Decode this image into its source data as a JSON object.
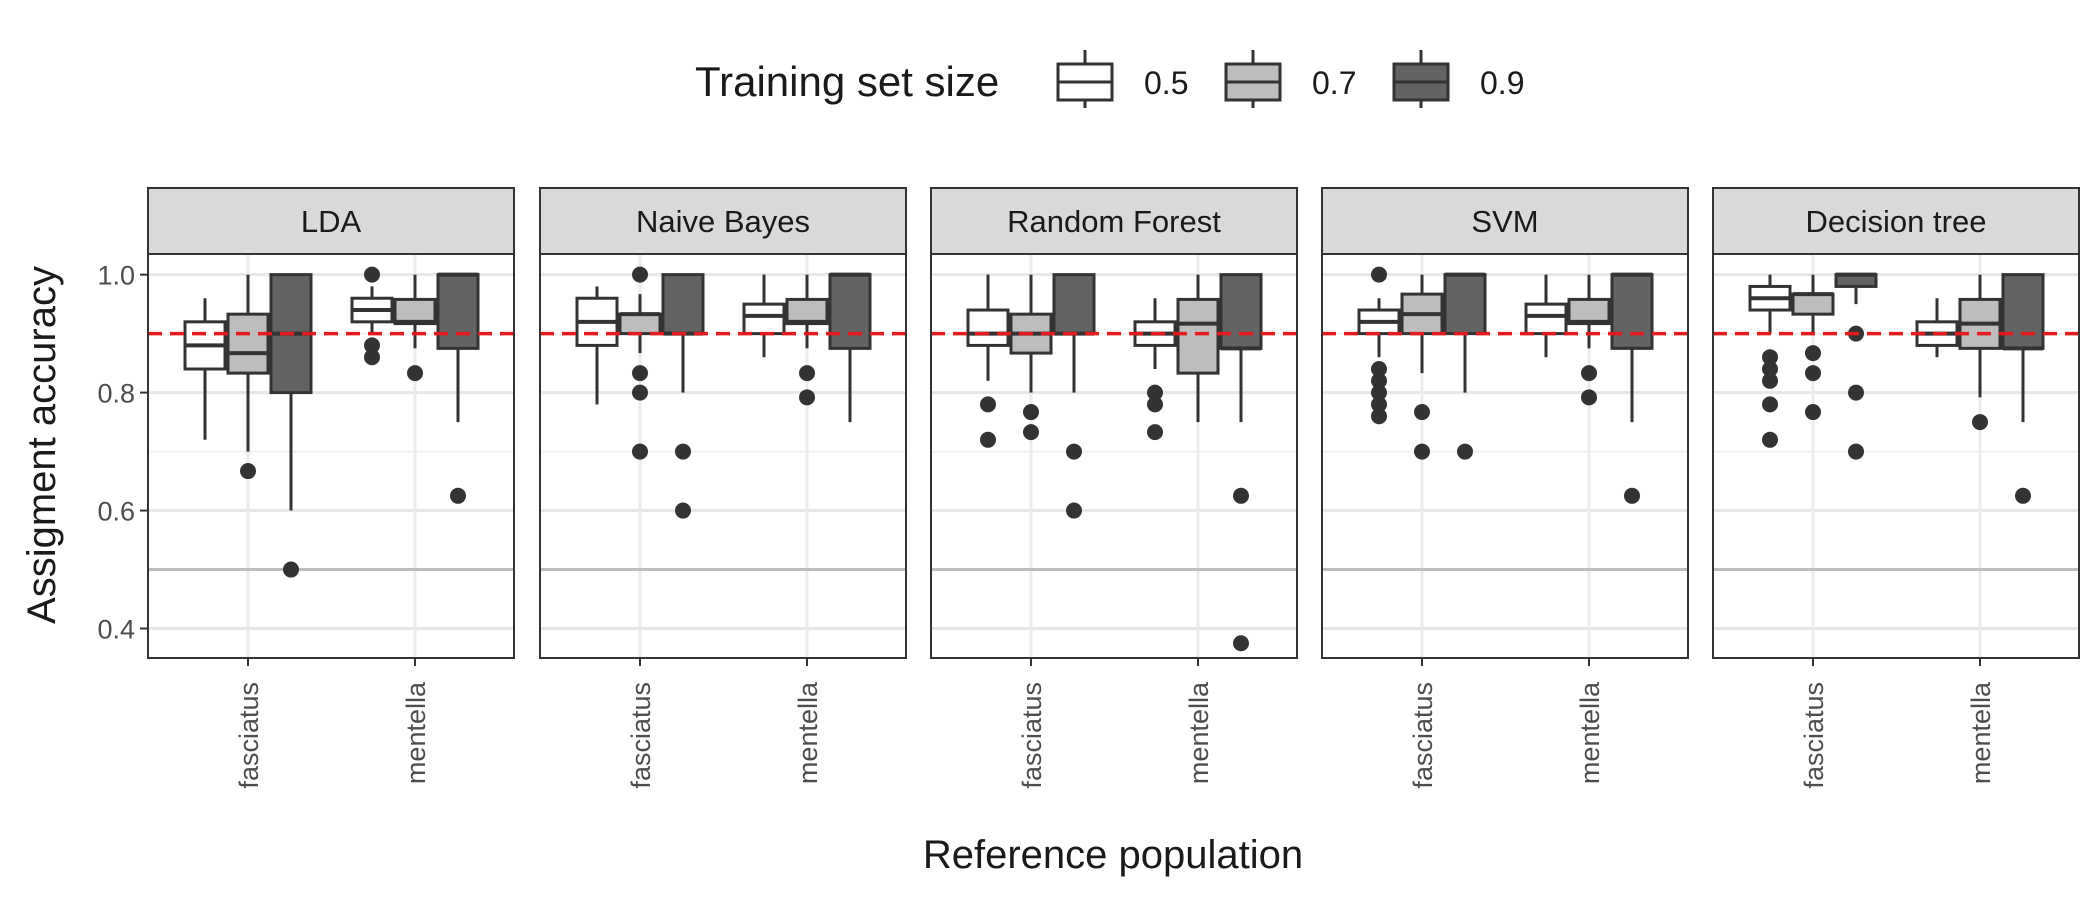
{
  "chart_data": {
    "type": "boxplot",
    "title": "",
    "xlabel": "Reference population",
    "ylabel": "Assigment accuracy",
    "ylim": [
      0.35,
      1.035
    ],
    "yticks": [
      0.4,
      0.6,
      0.8,
      1.0
    ],
    "ytick_labels": [
      "0.4",
      "0.6",
      "0.8",
      "1.0"
    ],
    "grid": true,
    "legend": {
      "title": "Training set size",
      "position": "top",
      "entries": [
        {
          "label": "0.5",
          "color": "#ffffff"
        },
        {
          "label": "0.7",
          "color": "#bdbdbd"
        },
        {
          "label": "0.9",
          "color": "#636363"
        }
      ]
    },
    "reference_lines": [
      {
        "y": 0.9,
        "color": "#e41a1c",
        "style": "dashed"
      },
      {
        "y": 0.5,
        "color": "#bdbdbd",
        "style": "solid"
      }
    ],
    "categories": [
      "fasciatus",
      "mentella"
    ],
    "panels": [
      {
        "label": "LDA",
        "groups": [
          {
            "category": "fasciatus",
            "boxes": [
              {
                "q1": 0.84,
                "median": 0.88,
                "q3": 0.92,
                "low": 0.72,
                "high": 0.96,
                "outliers": []
              },
              {
                "q1": 0.833,
                "median": 0.867,
                "q3": 0.933,
                "low": 0.7,
                "high": 1.0,
                "outliers": [
                  0.667
                ]
              },
              {
                "q1": 0.8,
                "median": 0.9,
                "q3": 1.0,
                "low": 0.6,
                "high": 1.0,
                "outliers": [
                  0.5
                ]
              }
            ]
          },
          {
            "category": "mentella",
            "boxes": [
              {
                "q1": 0.92,
                "median": 0.94,
                "q3": 0.96,
                "low": 0.9,
                "high": 0.98,
                "outliers": [
                  1.0,
                  0.88,
                  0.86
                ]
              },
              {
                "q1": 0.917,
                "median": 0.92,
                "q3": 0.958,
                "low": 0.875,
                "high": 1.0,
                "outliers": [
                  0.833
                ]
              },
              {
                "q1": 0.875,
                "median": 1.0,
                "q3": 1.0,
                "low": 0.75,
                "high": 1.0,
                "outliers": [
                  0.625
                ]
              }
            ]
          }
        ]
      },
      {
        "label": "Naive Bayes",
        "groups": [
          {
            "category": "fasciatus",
            "boxes": [
              {
                "q1": 0.88,
                "median": 0.92,
                "q3": 0.96,
                "low": 0.78,
                "high": 0.98,
                "outliers": []
              },
              {
                "q1": 0.9,
                "median": 0.933,
                "q3": 0.933,
                "low": 0.867,
                "high": 0.967,
                "outliers": [
                  1.0,
                  0.833,
                  0.8,
                  0.7
                ]
              },
              {
                "q1": 0.9,
                "median": 0.9,
                "q3": 1.0,
                "low": 0.8,
                "high": 1.0,
                "outliers": [
                  0.7,
                  0.6
                ]
              }
            ]
          },
          {
            "category": "mentella",
            "boxes": [
              {
                "q1": 0.9,
                "median": 0.93,
                "q3": 0.95,
                "low": 0.86,
                "high": 1.0,
                "outliers": []
              },
              {
                "q1": 0.917,
                "median": 0.92,
                "q3": 0.958,
                "low": 0.875,
                "high": 1.0,
                "outliers": [
                  0.833,
                  0.792
                ]
              },
              {
                "q1": 0.875,
                "median": 1.0,
                "q3": 1.0,
                "low": 0.75,
                "high": 1.0,
                "outliers": []
              }
            ]
          }
        ]
      },
      {
        "label": "Random Forest",
        "groups": [
          {
            "category": "fasciatus",
            "boxes": [
              {
                "q1": 0.88,
                "median": 0.9,
                "q3": 0.94,
                "low": 0.82,
                "high": 1.0,
                "outliers": [
                  0.78,
                  0.72
                ]
              },
              {
                "q1": 0.867,
                "median": 0.9,
                "q3": 0.933,
                "low": 0.8,
                "high": 1.0,
                "outliers": [
                  0.767,
                  0.733
                ]
              },
              {
                "q1": 0.9,
                "median": 0.9,
                "q3": 1.0,
                "low": 0.8,
                "high": 1.0,
                "outliers": [
                  0.7,
                  0.6
                ]
              }
            ]
          },
          {
            "category": "mentella",
            "boxes": [
              {
                "q1": 0.88,
                "median": 0.9,
                "q3": 0.92,
                "low": 0.84,
                "high": 0.96,
                "outliers": [
                  0.8,
                  0.78,
                  0.733
                ]
              },
              {
                "q1": 0.833,
                "median": 0.917,
                "q3": 0.958,
                "low": 0.75,
                "high": 1.0,
                "outliers": []
              },
              {
                "q1": 0.875,
                "median": 0.875,
                "q3": 1.0,
                "low": 0.75,
                "high": 1.0,
                "outliers": [
                  0.625,
                  0.375
                ]
              }
            ]
          }
        ]
      },
      {
        "label": "SVM",
        "groups": [
          {
            "category": "fasciatus",
            "boxes": [
              {
                "q1": 0.9,
                "median": 0.92,
                "q3": 0.94,
                "low": 0.86,
                "high": 0.96,
                "outliers": [
                  1.0,
                  0.84,
                  0.82,
                  0.8,
                  0.78,
                  0.76
                ]
              },
              {
                "q1": 0.9,
                "median": 0.933,
                "q3": 0.967,
                "low": 0.833,
                "high": 1.0,
                "outliers": [
                  0.767,
                  0.7
                ]
              },
              {
                "q1": 0.9,
                "median": 1.0,
                "q3": 1.0,
                "low": 0.8,
                "high": 1.0,
                "outliers": [
                  0.7
                ]
              }
            ]
          },
          {
            "category": "mentella",
            "boxes": [
              {
                "q1": 0.9,
                "median": 0.93,
                "q3": 0.95,
                "low": 0.86,
                "high": 1.0,
                "outliers": []
              },
              {
                "q1": 0.917,
                "median": 0.92,
                "q3": 0.958,
                "low": 0.875,
                "high": 1.0,
                "outliers": [
                  0.833,
                  0.792
                ]
              },
              {
                "q1": 0.875,
                "median": 1.0,
                "q3": 1.0,
                "low": 0.75,
                "high": 1.0,
                "outliers": [
                  0.625
                ]
              }
            ]
          }
        ]
      },
      {
        "label": "Decision tree",
        "groups": [
          {
            "category": "fasciatus",
            "boxes": [
              {
                "q1": 0.94,
                "median": 0.96,
                "q3": 0.98,
                "low": 0.9,
                "high": 1.0,
                "outliers": [
                  0.86,
                  0.84,
                  0.82,
                  0.78,
                  0.72
                ]
              },
              {
                "q1": 0.933,
                "median": 0.967,
                "q3": 0.967,
                "low": 0.9,
                "high": 1.0,
                "outliers": [
                  0.867,
                  0.833,
                  0.767
                ]
              },
              {
                "q1": 0.98,
                "median": 1.0,
                "q3": 1.0,
                "low": 0.95,
                "high": 1.0,
                "outliers": [
                  0.9,
                  0.8,
                  0.7
                ]
              }
            ]
          },
          {
            "category": "mentella",
            "boxes": [
              {
                "q1": 0.88,
                "median": 0.9,
                "q3": 0.92,
                "low": 0.86,
                "high": 0.96,
                "outliers": []
              },
              {
                "q1": 0.875,
                "median": 0.917,
                "q3": 0.958,
                "low": 0.792,
                "high": 1.0,
                "outliers": [
                  0.75
                ]
              },
              {
                "q1": 0.875,
                "median": 0.875,
                "q3": 1.0,
                "low": 0.75,
                "high": 1.0,
                "outliers": [
                  0.625
                ]
              }
            ]
          }
        ]
      }
    ]
  }
}
